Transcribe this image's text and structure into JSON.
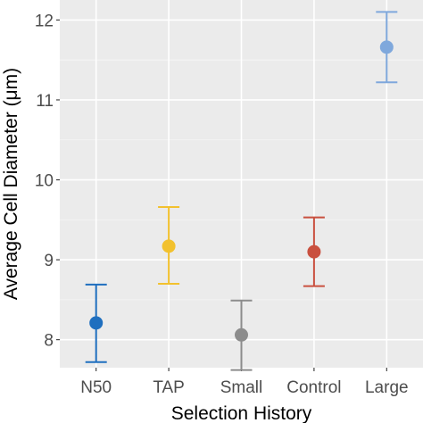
{
  "chart_data": {
    "type": "scatter",
    "subtype": "point-with-error-bars",
    "title": "",
    "xlabel": "Selection History",
    "ylabel": "Average Cell Diameter (μm)",
    "categories": [
      "N50",
      "TAP",
      "Small",
      "Control",
      "Large"
    ],
    "values": [
      8.21,
      9.17,
      8.06,
      9.1,
      11.66
    ],
    "error_upper": [
      8.69,
      9.66,
      8.49,
      9.53,
      12.1
    ],
    "error_lower": [
      7.72,
      8.7,
      7.62,
      8.67,
      11.22
    ],
    "colors": [
      "#1f6fbf",
      "#f2c12e",
      "#8c8c8c",
      "#c9503f",
      "#7fa8dc"
    ],
    "ylim": [
      7.65,
      12.25
    ],
    "yticks": [
      "8",
      "9",
      "10",
      "11",
      "12"
    ],
    "ytick_values": [
      8,
      9,
      10,
      11,
      12
    ],
    "grid": true,
    "background": "#ebebeb",
    "legend": "none"
  }
}
